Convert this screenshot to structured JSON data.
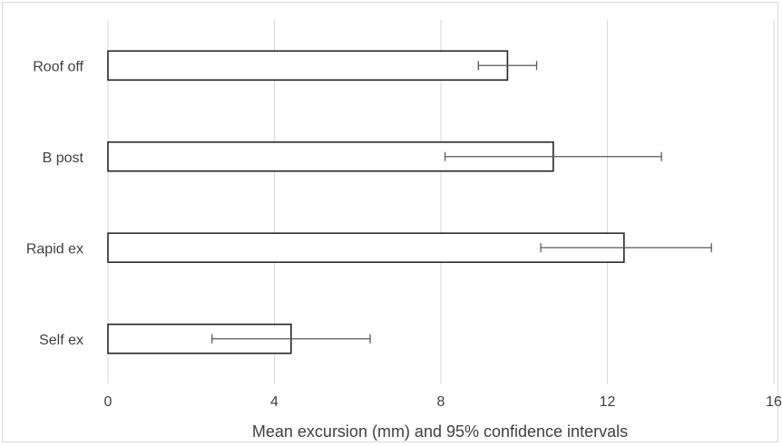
{
  "chart_data": {
    "type": "bar",
    "orientation": "horizontal",
    "categories": [
      "Roof off",
      "B post",
      "Rapid ex",
      "Self ex"
    ],
    "values": [
      9.6,
      10.7,
      12.4,
      4.4
    ],
    "ci_low": [
      8.9,
      8.1,
      10.4,
      2.5
    ],
    "ci_high": [
      10.3,
      13.3,
      14.5,
      6.3
    ],
    "xlabel": "Mean excursion (mm) and 95% confidence intervals",
    "ylabel": "",
    "xlim": [
      0,
      16
    ],
    "xticks": [
      "0",
      "4",
      "8",
      "12",
      "16"
    ],
    "grid": "vertical",
    "legend": "none",
    "colors": {
      "bar_fill": "#ffffff",
      "bar_stroke": "#262626",
      "error_bar": "#595959",
      "grid": "#d9d9d9",
      "text": "#404040"
    }
  }
}
